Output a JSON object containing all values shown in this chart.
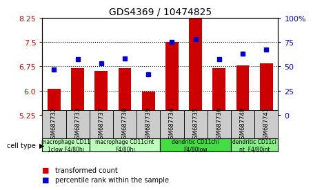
{
  "title": "GDS4369 / 10474825",
  "samples": [
    "GSM687732",
    "GSM687733",
    "GSM687737",
    "GSM687738",
    "GSM687739",
    "GSM687734",
    "GSM687735",
    "GSM687736",
    "GSM687740",
    "GSM687741"
  ],
  "bar_values": [
    6.05,
    6.7,
    6.62,
    6.7,
    5.97,
    7.5,
    8.4,
    6.7,
    6.78,
    6.85
  ],
  "dot_values": [
    47,
    57,
    53,
    58,
    42,
    75,
    78,
    57,
    63,
    67
  ],
  "ylim": [
    5.25,
    8.25
  ],
  "y2lim": [
    0,
    100
  ],
  "yticks": [
    5.25,
    6.0,
    6.75,
    7.5,
    8.25
  ],
  "y2ticks": [
    0,
    25,
    50,
    75,
    100
  ],
  "bar_color": "#cc0000",
  "dot_color": "#0000cc",
  "cell_type_groups": [
    {
      "label": "macrophage CD11\n1clow F4/80hi",
      "start": 0,
      "end": 2,
      "color": "#bbffbb"
    },
    {
      "label": "macrophage CD11cint\nF4/80hi",
      "start": 2,
      "end": 5,
      "color": "#bbffbb"
    },
    {
      "label": "dendritic CD11chi\nF4/80low",
      "start": 5,
      "end": 8,
      "color": "#44dd44"
    },
    {
      "label": "dendritic CD11ci\nnt  F4/80int",
      "start": 8,
      "end": 10,
      "color": "#88ee88"
    }
  ],
  "cell_type_label": "cell type",
  "legend_bar": "transformed count",
  "legend_dot": "percentile rank within the sample",
  "plot_bg": "#ffffff",
  "sample_box_color": "#cccccc",
  "grid_yticks": [
    6.0,
    6.75,
    7.5
  ]
}
